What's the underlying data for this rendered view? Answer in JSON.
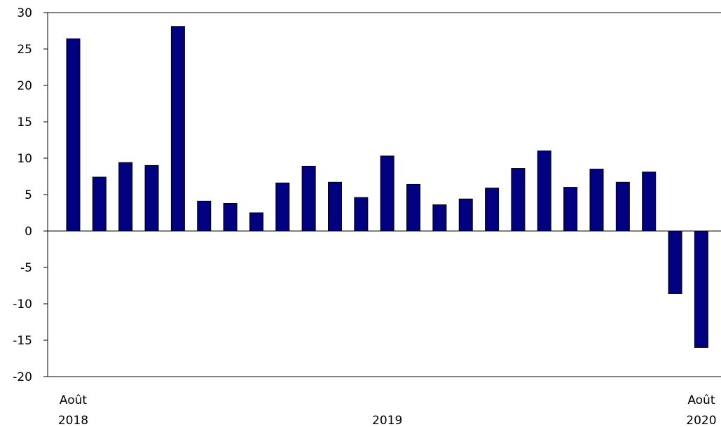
{
  "chart_data": {
    "type": "bar",
    "categories": [
      "2018-08",
      "2018-09",
      "2018-10",
      "2018-11",
      "2018-12",
      "2019-01",
      "2019-02",
      "2019-03",
      "2019-04",
      "2019-05",
      "2019-06",
      "2019-07",
      "2019-08",
      "2019-09",
      "2019-10",
      "2019-11",
      "2019-12",
      "2020-01",
      "2020-02",
      "2020-03",
      "2020-04",
      "2020-05",
      "2020-06",
      "2020-07",
      "2020-08"
    ],
    "values": [
      26.4,
      7.4,
      9.4,
      9.0,
      28.1,
      4.1,
      3.8,
      2.5,
      6.6,
      8.9,
      6.7,
      4.6,
      10.3,
      6.4,
      3.6,
      4.4,
      5.9,
      8.6,
      11.0,
      6.0,
      8.5,
      6.7,
      8.1,
      -8.6,
      -16.0
    ],
    "ylim": [
      -20,
      30
    ],
    "yticks": [
      "-20",
      "-15",
      "-10",
      "-5",
      "0",
      "5",
      "10",
      "15",
      "20",
      "25",
      "30"
    ],
    "x_labels": [
      {
        "index": 0,
        "line1": "Août",
        "line2": "2018"
      },
      {
        "index": 12,
        "line1": "",
        "line2": "2019"
      },
      {
        "index": 24,
        "line1": "Août",
        "line2": "2020"
      }
    ],
    "colors": {
      "bar_fill": "#000080",
      "bar_stroke": "#000000",
      "axis": "#000000"
    },
    "grid": false,
    "legend": "none"
  }
}
